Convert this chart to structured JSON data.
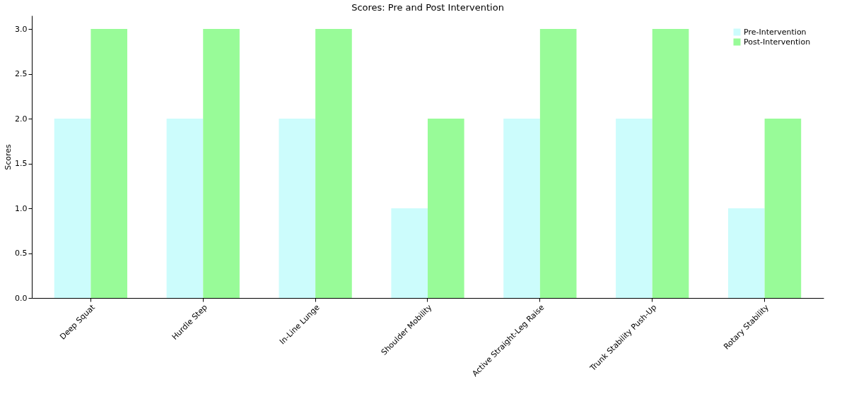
{
  "chart_data": {
    "type": "bar",
    "title": "Scores: Pre and Post Intervention",
    "ylabel": "Scores",
    "categories": [
      "Deep Squat",
      "Hurdle Step",
      "In-Line Lunge",
      "Shoulder Mobility",
      "Active Straight-Leg Raise",
      "Trunk Stability Push-Up",
      "Rotary Stability"
    ],
    "series": [
      {
        "name": "Pre-Intervention",
        "color": "#ccfcfc",
        "values": [
          2,
          2,
          2,
          1,
          2,
          2,
          1
        ]
      },
      {
        "name": "Post-Intervention",
        "color": "#98fb98",
        "values": [
          3,
          3,
          3,
          2,
          3,
          3,
          2
        ]
      }
    ],
    "ylim": [
      0,
      3.15
    ],
    "yticks": [
      {
        "value": 0,
        "label": "0.0"
      },
      {
        "value": 0.5,
        "label": "0.5"
      },
      {
        "value": 1,
        "label": "1.0"
      },
      {
        "value": 1.5,
        "label": "1.5"
      },
      {
        "value": 2,
        "label": "2.0"
      },
      {
        "value": 2.5,
        "label": "2.5"
      },
      {
        "value": 3,
        "label": "3.0"
      }
    ],
    "grid": false,
    "legend": "top right"
  }
}
